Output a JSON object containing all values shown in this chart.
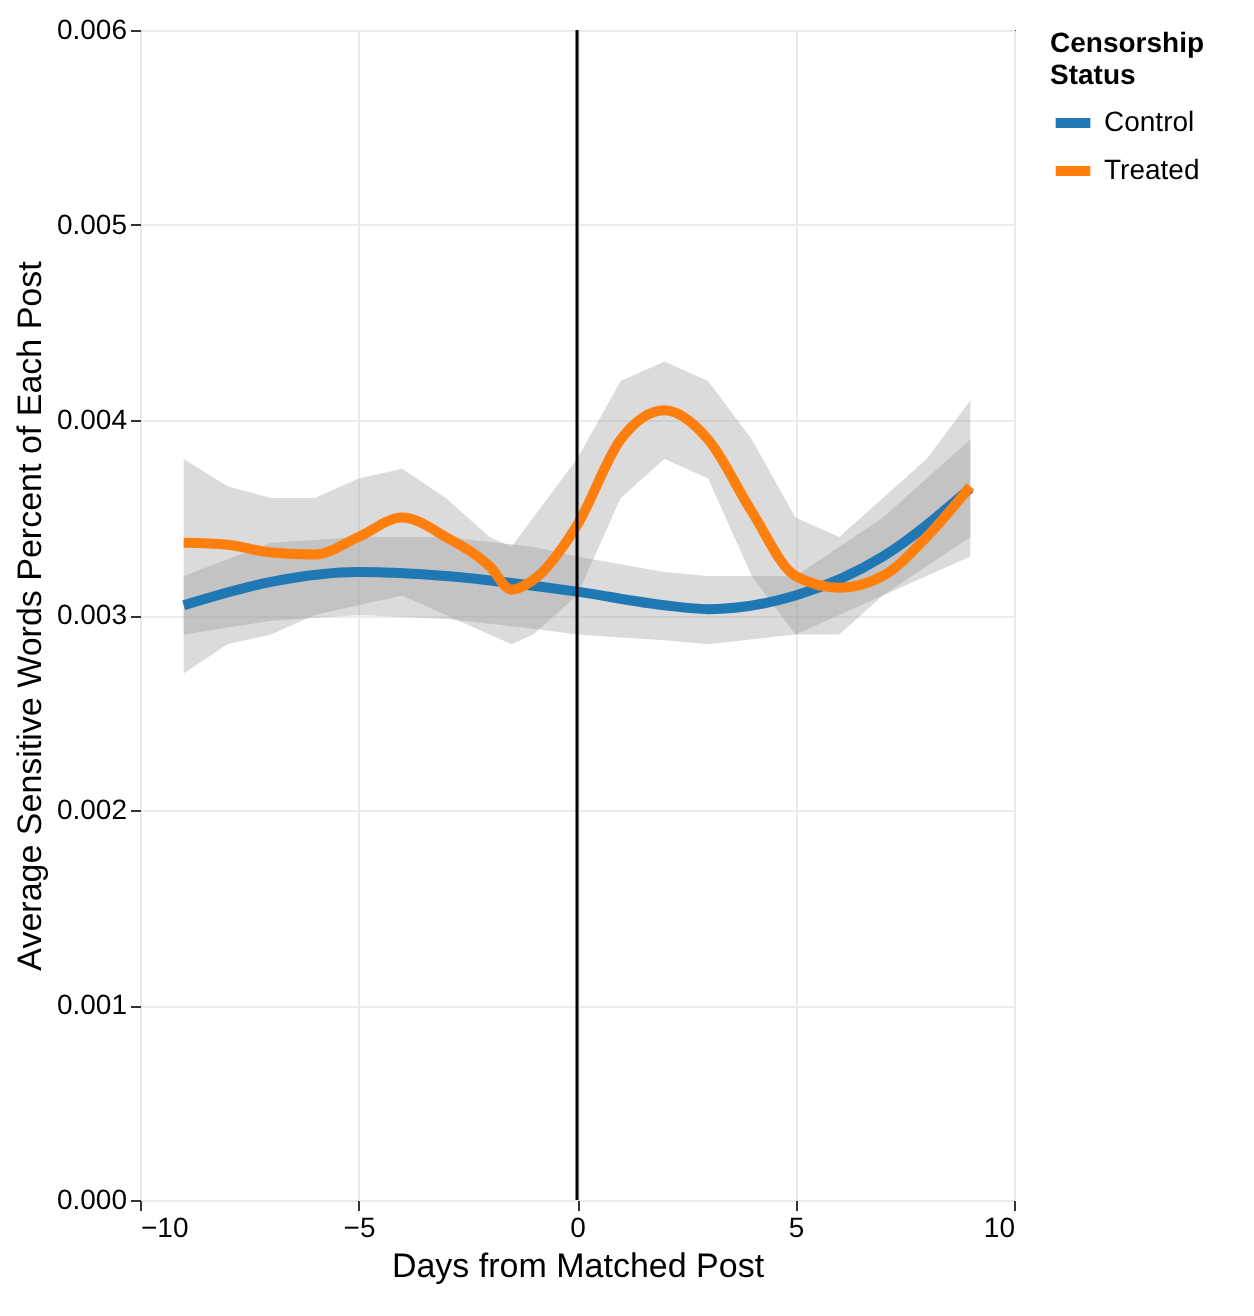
{
  "chart_data": {
    "type": "line",
    "xlabel": "Days from Matched Post",
    "ylabel": "Average Sensitive Words Percent of Each Post",
    "legend_title": "Censorship\nStatus",
    "legend": "right",
    "grid": true,
    "xlim": [
      -10,
      10
    ],
    "xticks": [
      {
        "value": -10,
        "label": "−10"
      },
      {
        "value": -5,
        "label": "−5"
      },
      0,
      5,
      10
    ],
    "ylim": [
      0,
      0.006
    ],
    "yticks": [
      {
        "value": 0,
        "label": "0.000"
      },
      0.001,
      0.002,
      0.003,
      0.004,
      0.005,
      0.006
    ],
    "ref_lines": [
      {
        "axis": "x",
        "value": 0,
        "color": "#000000"
      }
    ],
    "series": [
      {
        "name": "Control",
        "color": "#1f77b4",
        "x": [
          -9,
          -7,
          -5,
          -3,
          -1,
          0,
          2,
          3,
          5,
          7,
          9
        ],
        "values": [
          0.00305,
          0.00317,
          0.00322,
          0.0032,
          0.00315,
          0.00312,
          0.00305,
          0.00303,
          0.0031,
          0.0033,
          0.00365
        ],
        "lower": [
          0.0029,
          0.00297,
          0.003,
          0.00298,
          0.00293,
          0.0029,
          0.00287,
          0.00285,
          0.0029,
          0.0031,
          0.0034
        ],
        "upper": [
          0.0032,
          0.00337,
          0.0034,
          0.0034,
          0.00335,
          0.0033,
          0.00322,
          0.0032,
          0.0032,
          0.0035,
          0.0039
        ]
      },
      {
        "name": "Treated",
        "color": "#ff7f0e",
        "x": [
          -9,
          -8,
          -7,
          -6,
          -5,
          -4,
          -3,
          -2,
          -1.5,
          -1,
          0,
          1,
          2,
          3,
          4,
          5,
          6,
          7,
          8,
          9
        ],
        "values": [
          0.00337,
          0.00336,
          0.00332,
          0.00331,
          0.0034,
          0.0035,
          0.0034,
          0.00325,
          0.00313,
          0.00318,
          0.00346,
          0.0039,
          0.00405,
          0.0039,
          0.00353,
          0.0032,
          0.00314,
          0.0032,
          0.0034,
          0.00366
        ],
        "lower": [
          0.0027,
          0.00285,
          0.0029,
          0.003,
          0.00305,
          0.0031,
          0.003,
          0.0029,
          0.00285,
          0.0029,
          0.0031,
          0.0036,
          0.0038,
          0.0037,
          0.0032,
          0.0029,
          0.0029,
          0.0031,
          0.0032,
          0.0033
        ],
        "upper": [
          0.0038,
          0.00366,
          0.0036,
          0.0036,
          0.0037,
          0.00375,
          0.0036,
          0.0034,
          0.00335,
          0.0035,
          0.0038,
          0.0042,
          0.0043,
          0.0042,
          0.0039,
          0.0035,
          0.0034,
          0.0036,
          0.0038,
          0.0041
        ]
      }
    ]
  }
}
